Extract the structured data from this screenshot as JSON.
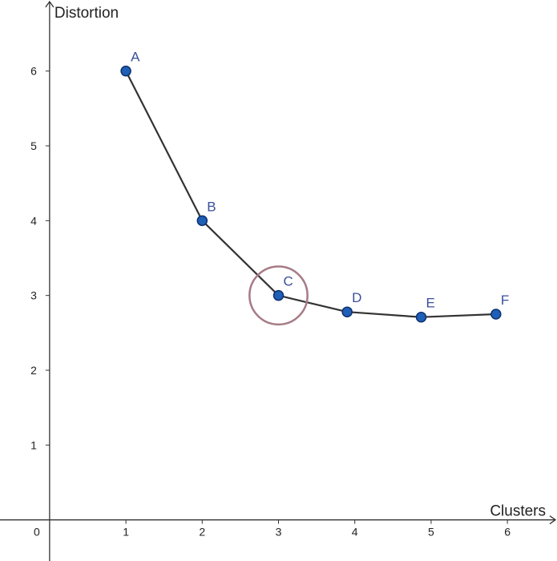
{
  "chart_data": {
    "type": "line",
    "title": "",
    "xlabel": "Clusters",
    "ylabel": "Distortion",
    "origin_label": "0",
    "xlim": [
      -0.65,
      6.65
    ],
    "ylim": [
      -0.55,
      6.95
    ],
    "xticks": [
      "1",
      "2",
      "3",
      "4",
      "5",
      "6"
    ],
    "yticks": [
      "1",
      "2",
      "3",
      "4",
      "5",
      "6"
    ],
    "grid": false,
    "series": [
      {
        "name": "distortion",
        "points": [
          {
            "label": "A",
            "x": 1.0,
            "y": 6.0
          },
          {
            "label": "B",
            "x": 2.0,
            "y": 4.0
          },
          {
            "label": "C",
            "x": 3.0,
            "y": 3.0
          },
          {
            "label": "D",
            "x": 3.9,
            "y": 2.78
          },
          {
            "label": "E",
            "x": 4.87,
            "y": 2.71
          },
          {
            "label": "F",
            "x": 5.85,
            "y": 2.75
          }
        ]
      }
    ],
    "highlight": {
      "label": "C",
      "x": 3.0,
      "y": 3.0,
      "radius": 0.38
    },
    "colors": {
      "line": "#333333",
      "marker_fill": "#1f5fb5",
      "marker_stroke": "#0d3270",
      "point_label": "#3a4f9a",
      "highlight_ring": "#a67b86",
      "axis": "#333333"
    }
  }
}
